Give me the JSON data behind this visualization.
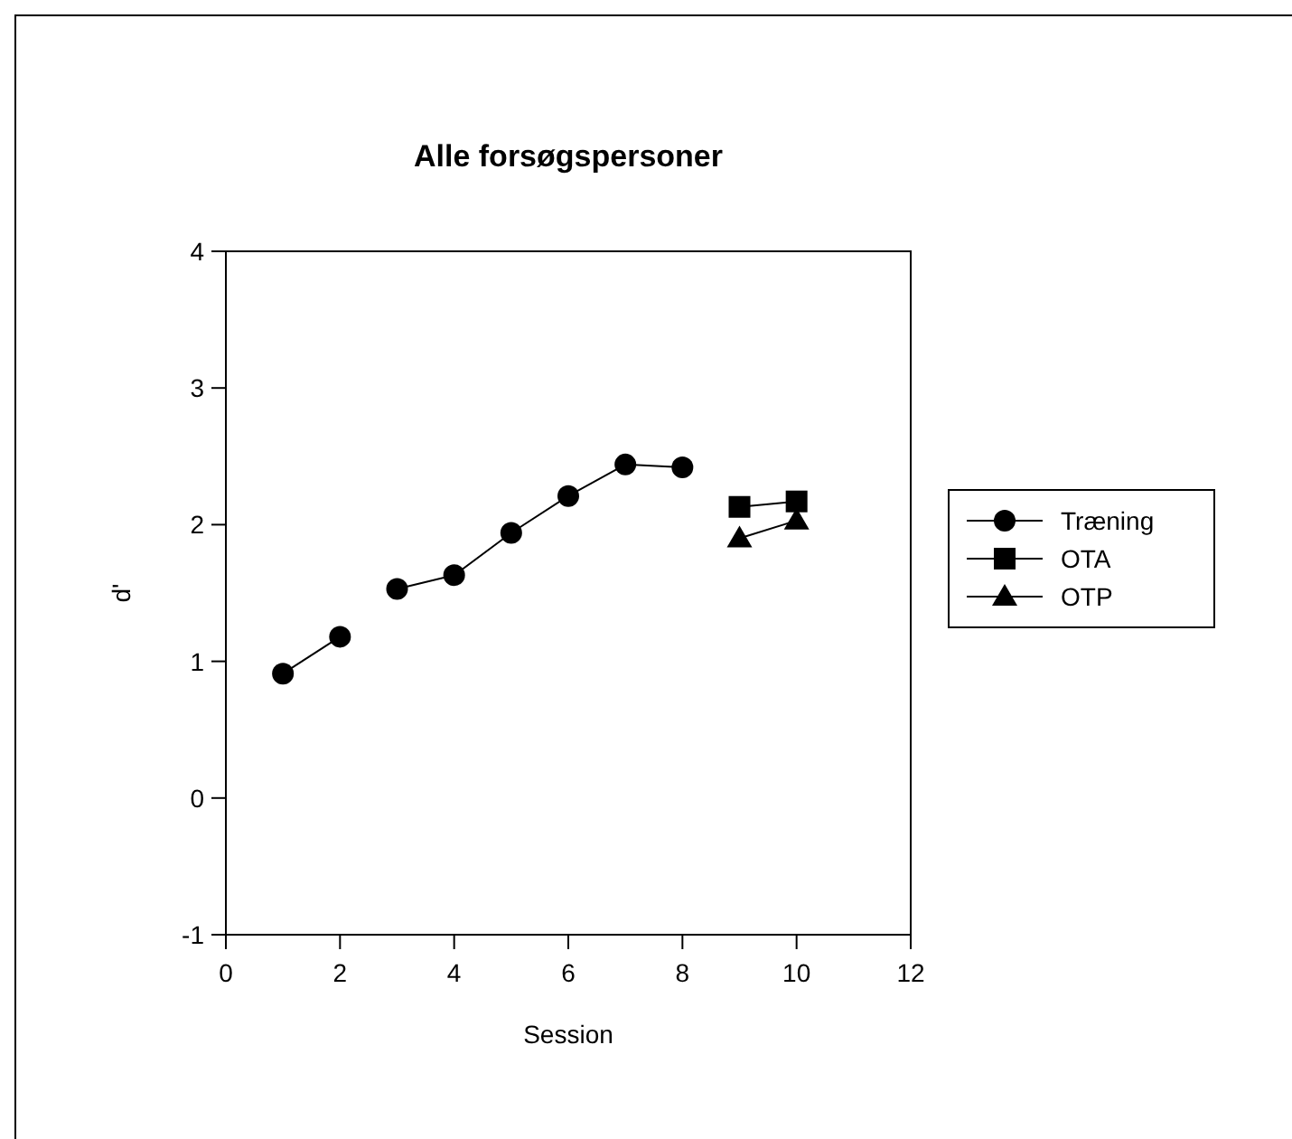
{
  "chart_data": {
    "type": "line",
    "title": "Alle forsøgspersoner",
    "xlabel": "Session",
    "ylabel": "d'",
    "xlim": [
      0,
      12
    ],
    "xticks": [
      0,
      2,
      4,
      6,
      8,
      10,
      12
    ],
    "ylim": [
      -1,
      4
    ],
    "yticks": [
      -1,
      0,
      1,
      2,
      3,
      4
    ],
    "grid": false,
    "legend": "right",
    "series": [
      {
        "name": "Træning",
        "color": "#000000",
        "marker": "circle",
        "x": [
          1,
          2
        ],
        "values": [
          0.91,
          1.18
        ]
      },
      {
        "color": "#000000",
        "marker": "circle",
        "x": [
          3,
          4,
          5,
          6,
          7,
          8
        ],
        "values": [
          1.53,
          1.63,
          1.94,
          2.21,
          2.44,
          2.42
        ]
      },
      {
        "name": "OTA",
        "color": "#000000",
        "marker": "square",
        "x": [
          9,
          10
        ],
        "values": [
          2.13,
          2.17
        ]
      },
      {
        "name": "OTP",
        "color": "#000000",
        "marker": "triangle",
        "x": [
          9,
          10
        ],
        "values": [
          1.9,
          2.03
        ]
      }
    ]
  }
}
